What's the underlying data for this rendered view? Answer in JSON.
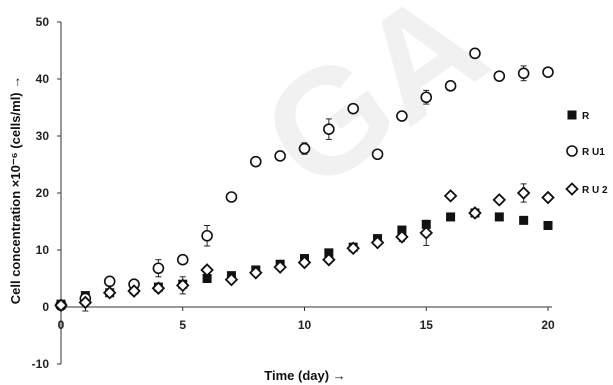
{
  "chart_data": {
    "type": "scatter",
    "xlabel": "Time (day) →",
    "ylabel": "Cell concentration ×10⁻⁶ (cells/ml) →",
    "xlim": [
      0,
      20
    ],
    "ylim": [
      -10,
      50
    ],
    "x_ticks": [
      0,
      5,
      10,
      15,
      20
    ],
    "y_ticks": [
      -10,
      0,
      10,
      20,
      30,
      40,
      50
    ],
    "grid": false,
    "legend_position": "right",
    "watermark": "GA",
    "series": [
      {
        "name": "R",
        "marker": "filled-square",
        "color": "#111111",
        "x": [
          0,
          1,
          2,
          3,
          4,
          5,
          6,
          7,
          8,
          9,
          10,
          11,
          12,
          13,
          14,
          15,
          16,
          17,
          18,
          19,
          20
        ],
        "y": [
          0.5,
          2.0,
          2.5,
          3.0,
          3.5,
          4.0,
          5.0,
          5.5,
          6.5,
          7.5,
          8.5,
          9.5,
          10.5,
          12.0,
          13.5,
          14.5,
          15.8,
          16.5,
          15.8,
          15.2,
          14.3
        ]
      },
      {
        "name": "R U1",
        "marker": "open-circle",
        "color": "#111111",
        "x": [
          0,
          1,
          2,
          3,
          4,
          5,
          6,
          7,
          8,
          9,
          10,
          11,
          12,
          13,
          14,
          15,
          16,
          17,
          18,
          19,
          20
        ],
        "y": [
          0.3,
          1.5,
          4.5,
          4.0,
          6.8,
          8.3,
          12.5,
          19.3,
          25.5,
          26.5,
          27.8,
          31.2,
          34.8,
          26.8,
          33.5,
          36.8,
          38.8,
          44.5,
          40.5,
          41.0,
          41.2
        ],
        "err": [
          0,
          1.0,
          0.5,
          0.5,
          1.5,
          0.8,
          1.8,
          0.5,
          0.5,
          0.5,
          1.0,
          1.8,
          0.6,
          0.5,
          0.6,
          1.2,
          0.6,
          0.5,
          0.6,
          1.3,
          0.5
        ]
      },
      {
        "name": "R U 2",
        "marker": "open-diamond",
        "color": "#111111",
        "x": [
          0,
          1,
          2,
          3,
          4,
          5,
          6,
          7,
          8,
          9,
          10,
          11,
          12,
          13,
          14,
          15,
          16,
          17,
          18,
          19,
          20
        ],
        "y": [
          0.3,
          0.8,
          2.5,
          2.8,
          3.3,
          3.8,
          6.5,
          4.8,
          6.0,
          7.0,
          7.8,
          8.3,
          10.3,
          11.3,
          12.3,
          13.0,
          19.5,
          16.5,
          18.8,
          20.0,
          19.2
        ],
        "err": [
          0.2,
          1.5,
          0.5,
          0.5,
          0.6,
          1.5,
          0.6,
          0.5,
          0.5,
          0.5,
          0.5,
          0.5,
          0.5,
          0.5,
          0.8,
          2.2,
          0.6,
          0.6,
          0.6,
          1.6,
          0.5
        ]
      }
    ]
  }
}
